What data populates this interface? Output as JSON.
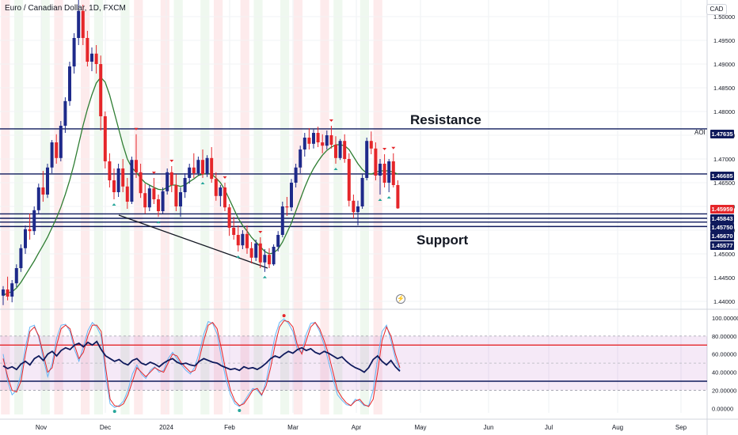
{
  "header": {
    "symbol_title": "Euro / Canadian Dollar, 1D, FXCM",
    "currency": "CAD"
  },
  "annotations": {
    "resistance": "Resistance",
    "support": "Support",
    "aoi": "AOI"
  },
  "price_tags": [
    {
      "label": "1.47635",
      "value": 1.47635,
      "color": "#0f1a5c"
    },
    {
      "label": "1.46685",
      "value": 1.46685,
      "color": "#0f1a5c"
    },
    {
      "label": "1.45959",
      "value": 1.45959,
      "color": "#e5262a"
    },
    {
      "label": "1.45843",
      "value": 1.45843,
      "color": "#0f1a5c"
    },
    {
      "label": "1.45750",
      "value": 1.4575,
      "color": "#0f1a5c"
    },
    {
      "label": "1.45670",
      "value": 1.4567,
      "color": "#0f1a5c"
    },
    {
      "label": "1.45577",
      "value": 1.45577,
      "color": "#0f1a5c"
    }
  ],
  "chart_data": [
    {
      "type": "candlestick",
      "title": "Euro / Canadian Dollar, 1D, FXCM",
      "y_axis": {
        "side": "right",
        "ticks": [
          "1.50000",
          "1.49500",
          "1.49000",
          "1.48500",
          "1.48000",
          "1.47500",
          "1.47000",
          "1.46500",
          "1.46000",
          "1.45500",
          "1.45000",
          "1.44500",
          "1.44000"
        ],
        "range": [
          1.4385,
          1.5035
        ]
      },
      "x_axis": {
        "ticks": [
          "Nov",
          "Dec",
          "2024",
          "Feb",
          "Mar",
          "Apr",
          "May",
          "Jun",
          "Jul",
          "Aug",
          "Sep"
        ]
      },
      "horizontal_levels": [
        1.47635,
        1.46685,
        1.45843,
        1.4575,
        1.4567,
        1.45577
      ],
      "candles": [
        {
          "o": 1.4412,
          "h": 1.4432,
          "l": 1.4392,
          "c": 1.4425
        },
        {
          "o": 1.4425,
          "h": 1.4452,
          "l": 1.4402,
          "c": 1.441
        },
        {
          "o": 1.441,
          "h": 1.4445,
          "l": 1.4398,
          "c": 1.4438
        },
        {
          "o": 1.4438,
          "h": 1.4478,
          "l": 1.443,
          "c": 1.447
        },
        {
          "o": 1.447,
          "h": 1.452,
          "l": 1.4462,
          "c": 1.4512
        },
        {
          "o": 1.4512,
          "h": 1.456,
          "l": 1.45,
          "c": 1.4552
        },
        {
          "o": 1.4552,
          "h": 1.4585,
          "l": 1.453,
          "c": 1.4548
        },
        {
          "o": 1.4548,
          "h": 1.46,
          "l": 1.454,
          "c": 1.4592
        },
        {
          "o": 1.4592,
          "h": 1.4648,
          "l": 1.4585,
          "c": 1.464
        },
        {
          "o": 1.464,
          "h": 1.4675,
          "l": 1.461,
          "c": 1.4625
        },
        {
          "o": 1.4625,
          "h": 1.469,
          "l": 1.4618,
          "c": 1.4682
        },
        {
          "o": 1.4682,
          "h": 1.474,
          "l": 1.467,
          "c": 1.4735
        },
        {
          "o": 1.4735,
          "h": 1.4752,
          "l": 1.469,
          "c": 1.4702
        },
        {
          "o": 1.4702,
          "h": 1.478,
          "l": 1.4695,
          "c": 1.477
        },
        {
          "o": 1.477,
          "h": 1.483,
          "l": 1.4755,
          "c": 1.4822
        },
        {
          "o": 1.4822,
          "h": 1.4905,
          "l": 1.4812,
          "c": 1.4895
        },
        {
          "o": 1.4895,
          "h": 1.4965,
          "l": 1.488,
          "c": 1.4955
        },
        {
          "o": 1.4955,
          "h": 1.5035,
          "l": 1.494,
          "c": 1.5012
        },
        {
          "o": 1.5012,
          "h": 1.5025,
          "l": 1.494,
          "c": 1.4955
        },
        {
          "o": 1.4955,
          "h": 1.497,
          "l": 1.4895,
          "c": 1.4905
        },
        {
          "o": 1.4905,
          "h": 1.4935,
          "l": 1.4885,
          "c": 1.4922
        },
        {
          "o": 1.4922,
          "h": 1.494,
          "l": 1.488,
          "c": 1.49
        },
        {
          "o": 1.49,
          "h": 1.4918,
          "l": 1.476,
          "c": 1.479
        },
        {
          "o": 1.479,
          "h": 1.48,
          "l": 1.468,
          "c": 1.4695
        },
        {
          "o": 1.4695,
          "h": 1.4712,
          "l": 1.464,
          "c": 1.4655
        },
        {
          "o": 1.4655,
          "h": 1.468,
          "l": 1.4615,
          "c": 1.463
        },
        {
          "o": 1.463,
          "h": 1.469,
          "l": 1.462,
          "c": 1.468
        },
        {
          "o": 1.468,
          "h": 1.47,
          "l": 1.463,
          "c": 1.4642
        },
        {
          "o": 1.4642,
          "h": 1.466,
          "l": 1.4595,
          "c": 1.461
        },
        {
          "o": 1.461,
          "h": 1.4705,
          "l": 1.4605,
          "c": 1.4698
        },
        {
          "o": 1.4698,
          "h": 1.4752,
          "l": 1.466,
          "c": 1.4672
        },
        {
          "o": 1.4672,
          "h": 1.469,
          "l": 1.4618,
          "c": 1.4628
        },
        {
          "o": 1.4628,
          "h": 1.4648,
          "l": 1.4585,
          "c": 1.4598
        },
        {
          "o": 1.4598,
          "h": 1.4645,
          "l": 1.459,
          "c": 1.4638
        },
        {
          "o": 1.4638,
          "h": 1.466,
          "l": 1.4605,
          "c": 1.4615
        },
        {
          "o": 1.4615,
          "h": 1.4625,
          "l": 1.4578,
          "c": 1.459
        },
        {
          "o": 1.459,
          "h": 1.464,
          "l": 1.4585,
          "c": 1.4632
        },
        {
          "o": 1.4632,
          "h": 1.468,
          "l": 1.4625,
          "c": 1.4672
        },
        {
          "o": 1.4672,
          "h": 1.4685,
          "l": 1.463,
          "c": 1.4645
        },
        {
          "o": 1.4645,
          "h": 1.4668,
          "l": 1.459,
          "c": 1.46
        },
        {
          "o": 1.46,
          "h": 1.464,
          "l": 1.4578,
          "c": 1.463
        },
        {
          "o": 1.463,
          "h": 1.467,
          "l": 1.4618,
          "c": 1.466
        },
        {
          "o": 1.466,
          "h": 1.469,
          "l": 1.4648,
          "c": 1.4682
        },
        {
          "o": 1.4682,
          "h": 1.4712,
          "l": 1.466,
          "c": 1.467
        },
        {
          "o": 1.467,
          "h": 1.4705,
          "l": 1.4665,
          "c": 1.4698
        },
        {
          "o": 1.4698,
          "h": 1.472,
          "l": 1.466,
          "c": 1.4668
        },
        {
          "o": 1.4668,
          "h": 1.4708,
          "l": 1.4662,
          "c": 1.4702
        },
        {
          "o": 1.4702,
          "h": 1.4725,
          "l": 1.465,
          "c": 1.4658
        },
        {
          "o": 1.4658,
          "h": 1.4672,
          "l": 1.4612,
          "c": 1.4622
        },
        {
          "o": 1.4622,
          "h": 1.4645,
          "l": 1.46,
          "c": 1.464
        },
        {
          "o": 1.464,
          "h": 1.465,
          "l": 1.459,
          "c": 1.4598
        },
        {
          "o": 1.4598,
          "h": 1.4605,
          "l": 1.4538,
          "c": 1.4555
        },
        {
          "o": 1.4555,
          "h": 1.4578,
          "l": 1.453,
          "c": 1.454
        },
        {
          "o": 1.454,
          "h": 1.456,
          "l": 1.4505,
          "c": 1.4518
        },
        {
          "o": 1.4518,
          "h": 1.455,
          "l": 1.451,
          "c": 1.4542
        },
        {
          "o": 1.4542,
          "h": 1.456,
          "l": 1.45,
          "c": 1.4512
        },
        {
          "o": 1.4512,
          "h": 1.4525,
          "l": 1.448,
          "c": 1.4492
        },
        {
          "o": 1.4492,
          "h": 1.453,
          "l": 1.4485,
          "c": 1.4522
        },
        {
          "o": 1.4522,
          "h": 1.4535,
          "l": 1.447,
          "c": 1.4482
        },
        {
          "o": 1.4482,
          "h": 1.451,
          "l": 1.4462,
          "c": 1.4498
        },
        {
          "o": 1.4498,
          "h": 1.4512,
          "l": 1.447,
          "c": 1.4478
        },
        {
          "o": 1.4478,
          "h": 1.452,
          "l": 1.4475,
          "c": 1.4515
        },
        {
          "o": 1.4515,
          "h": 1.4548,
          "l": 1.4505,
          "c": 1.454
        },
        {
          "o": 1.454,
          "h": 1.461,
          "l": 1.4535,
          "c": 1.46
        },
        {
          "o": 1.46,
          "h": 1.462,
          "l": 1.458,
          "c": 1.4598
        },
        {
          "o": 1.4598,
          "h": 1.4658,
          "l": 1.459,
          "c": 1.465
        },
        {
          "o": 1.465,
          "h": 1.469,
          "l": 1.464,
          "c": 1.4682
        },
        {
          "o": 1.4682,
          "h": 1.4728,
          "l": 1.467,
          "c": 1.472
        },
        {
          "o": 1.472,
          "h": 1.4755,
          "l": 1.4705,
          "c": 1.4745
        },
        {
          "o": 1.4745,
          "h": 1.4765,
          "l": 1.472,
          "c": 1.4732
        },
        {
          "o": 1.4732,
          "h": 1.4762,
          "l": 1.4722,
          "c": 1.4755
        },
        {
          "o": 1.4755,
          "h": 1.4768,
          "l": 1.4725,
          "c": 1.4735
        },
        {
          "o": 1.4735,
          "h": 1.4752,
          "l": 1.4712,
          "c": 1.4728
        },
        {
          "o": 1.4728,
          "h": 1.476,
          "l": 1.472,
          "c": 1.475
        },
        {
          "o": 1.475,
          "h": 1.477,
          "l": 1.4722,
          "c": 1.473
        },
        {
          "o": 1.473,
          "h": 1.4748,
          "l": 1.469,
          "c": 1.4702
        },
        {
          "o": 1.4702,
          "h": 1.4742,
          "l": 1.4698,
          "c": 1.4738
        },
        {
          "o": 1.4738,
          "h": 1.4752,
          "l": 1.4692,
          "c": 1.47
        },
        {
          "o": 1.47,
          "h": 1.4712,
          "l": 1.46,
          "c": 1.4612
        },
        {
          "o": 1.4612,
          "h": 1.4625,
          "l": 1.4575,
          "c": 1.4588
        },
        {
          "o": 1.4588,
          "h": 1.4612,
          "l": 1.456,
          "c": 1.46
        },
        {
          "o": 1.46,
          "h": 1.4668,
          "l": 1.4595,
          "c": 1.466
        },
        {
          "o": 1.466,
          "h": 1.4745,
          "l": 1.4655,
          "c": 1.4738
        },
        {
          "o": 1.4738,
          "h": 1.4758,
          "l": 1.471,
          "c": 1.4722
        },
        {
          "o": 1.4722,
          "h": 1.4735,
          "l": 1.4655,
          "c": 1.4665
        },
        {
          "o": 1.4665,
          "h": 1.47,
          "l": 1.4625,
          "c": 1.469
        },
        {
          "o": 1.469,
          "h": 1.471,
          "l": 1.464,
          "c": 1.465
        },
        {
          "o": 1.465,
          "h": 1.47,
          "l": 1.463,
          "c": 1.4695
        },
        {
          "o": 1.4695,
          "h": 1.4712,
          "l": 1.464,
          "c": 1.4645
        },
        {
          "o": 1.4645,
          "h": 1.4655,
          "l": 1.4595,
          "c": 1.4596
        }
      ],
      "moving_average": [
        1.4412,
        1.4418,
        1.442,
        1.4428,
        1.444,
        1.4455,
        1.447,
        1.4485,
        1.4502,
        1.4518,
        1.4535,
        1.4555,
        1.4575,
        1.4598,
        1.4625,
        1.4655,
        1.469,
        1.473,
        1.477,
        1.4805,
        1.4835,
        1.486,
        1.4872,
        1.4862,
        1.4835,
        1.48,
        1.4765,
        1.473,
        1.47,
        1.4682,
        1.4672,
        1.466,
        1.465,
        1.4645,
        1.464,
        1.4636,
        1.4635,
        1.464,
        1.4645,
        1.4645,
        1.4642,
        1.4645,
        1.4652,
        1.4658,
        1.4665,
        1.4668,
        1.467,
        1.4668,
        1.466,
        1.465,
        1.4635,
        1.4615,
        1.4595,
        1.4575,
        1.456,
        1.4548,
        1.4535,
        1.4525,
        1.4515,
        1.4505,
        1.45,
        1.4502,
        1.451,
        1.4525,
        1.4545,
        1.4565,
        1.459,
        1.4615,
        1.464,
        1.4662,
        1.468,
        1.4695,
        1.4708,
        1.4718,
        1.4725,
        1.473,
        1.473,
        1.4728,
        1.472,
        1.4705,
        1.469,
        1.4678,
        1.467,
        1.4668,
        1.4672,
        1.4675,
        1.4675,
        1.4675,
        1.4672,
        1.4668
      ]
    },
    {
      "type": "line",
      "subtype": "oscillator",
      "y_axis": {
        "side": "right",
        "ticks": [
          "100.00000",
          "80.00000",
          "60.00000",
          "40.00000",
          "20.00000",
          "0.00000"
        ],
        "range": [
          -5,
          107
        ]
      },
      "levels": [
        70,
        30
      ],
      "series": [
        {
          "color": "#0f1a5c",
          "values": [
            47,
            44,
            46,
            43,
            49,
            52,
            48,
            55,
            58,
            53,
            60,
            63,
            58,
            64,
            67,
            65,
            70,
            72,
            68,
            73,
            70,
            74,
            65,
            58,
            55,
            52,
            54,
            50,
            48,
            53,
            55,
            50,
            48,
            51,
            49,
            46,
            50,
            53,
            55,
            51,
            49,
            50,
            48,
            47,
            52,
            55,
            53,
            51,
            50,
            47,
            45,
            43,
            44,
            42,
            46,
            44,
            45,
            43,
            46,
            50,
            55,
            58,
            56,
            60,
            63,
            61,
            65,
            67,
            64,
            66,
            62,
            60,
            63,
            61,
            58,
            55,
            57,
            52,
            48,
            45,
            43,
            40,
            45,
            54,
            58,
            52,
            48,
            53,
            46,
            41
          ]
        },
        {
          "color": "#e5262a",
          "values": [
            55,
            35,
            20,
            18,
            30,
            60,
            85,
            90,
            80,
            60,
            40,
            45,
            70,
            88,
            92,
            88,
            70,
            55,
            62,
            80,
            92,
            92,
            85,
            45,
            10,
            3,
            2,
            5,
            15,
            30,
            45,
            40,
            35,
            40,
            45,
            42,
            40,
            50,
            60,
            58,
            50,
            45,
            40,
            42,
            55,
            75,
            92,
            95,
            88,
            65,
            40,
            20,
            8,
            3,
            5,
            12,
            20,
            22,
            15,
            25,
            45,
            70,
            90,
            97,
            96,
            90,
            70,
            60,
            75,
            90,
            95,
            88,
            75,
            60,
            40,
            20,
            12,
            6,
            3,
            8,
            10,
            4,
            2,
            10,
            40,
            75,
            90,
            80,
            60,
            45
          ]
        },
        {
          "color": "#64b5f6",
          "values": [
            60,
            30,
            15,
            20,
            38,
            68,
            90,
            92,
            78,
            55,
            35,
            50,
            78,
            92,
            93,
            85,
            65,
            52,
            68,
            86,
            95,
            90,
            80,
            35,
            5,
            1,
            3,
            8,
            20,
            38,
            48,
            38,
            33,
            42,
            46,
            40,
            42,
            55,
            62,
            55,
            48,
            42,
            38,
            46,
            62,
            82,
            96,
            94,
            82,
            55,
            32,
            15,
            5,
            2,
            7,
            15,
            22,
            20,
            14,
            30,
            55,
            80,
            95,
            99,
            94,
            85,
            65,
            62,
            82,
            94,
            95,
            85,
            70,
            52,
            32,
            15,
            9,
            4,
            3,
            10,
            8,
            3,
            3,
            20,
            55,
            85,
            92,
            75,
            55,
            42
          ]
        }
      ]
    }
  ]
}
